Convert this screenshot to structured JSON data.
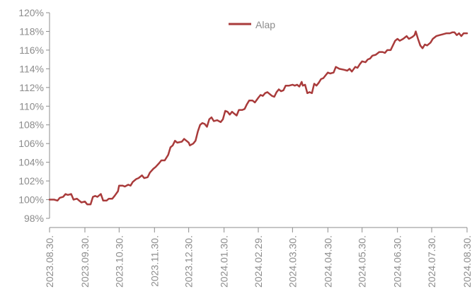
{
  "chart_data": {
    "type": "line",
    "ylim": [
      98,
      120
    ],
    "y_ticks": [
      "98%",
      "100%",
      "102%",
      "104%",
      "106%",
      "108%",
      "110%",
      "112%",
      "114%",
      "116%",
      "118%",
      "120%"
    ],
    "x_ticks": [
      "2023.08.30.",
      "2023.09.30.",
      "2023.10.30.",
      "2023.11.30.",
      "2023.12.30.",
      "2024.01.30.",
      "2024.02.29.",
      "2024.03.30.",
      "2024.04.30.",
      "2024.05.30.",
      "2024.06.30.",
      "2024.07.30.",
      "2024.08.30."
    ],
    "grid": false,
    "legend_position": "top-center",
    "series": [
      {
        "name": "Alap",
        "color": "#a93b3b",
        "points": [
          [
            "2023-08-30",
            100.0
          ],
          [
            "2023-09-03",
            100.0
          ],
          [
            "2023-09-06",
            99.9
          ],
          [
            "2023-09-08",
            100.2
          ],
          [
            "2023-09-11",
            100.3
          ],
          [
            "2023-09-13",
            100.6
          ],
          [
            "2023-09-15",
            100.5
          ],
          [
            "2023-09-18",
            100.6
          ],
          [
            "2023-09-20",
            100.0
          ],
          [
            "2023-09-23",
            100.1
          ],
          [
            "2023-09-25",
            99.9
          ],
          [
            "2023-09-27",
            99.7
          ],
          [
            "2023-09-30",
            99.8
          ],
          [
            "2023-10-02",
            99.5
          ],
          [
            "2023-10-05",
            99.5
          ],
          [
            "2023-10-07",
            100.3
          ],
          [
            "2023-10-09",
            100.4
          ],
          [
            "2023-10-11",
            100.3
          ],
          [
            "2023-10-14",
            100.6
          ],
          [
            "2023-10-16",
            99.9
          ],
          [
            "2023-10-19",
            99.9
          ],
          [
            "2023-10-21",
            100.1
          ],
          [
            "2023-10-24",
            100.1
          ],
          [
            "2023-10-26",
            100.4
          ],
          [
            "2023-10-29",
            100.9
          ],
          [
            "2023-10-30",
            101.5
          ],
          [
            "2023-11-02",
            101.5
          ],
          [
            "2023-11-04",
            101.4
          ],
          [
            "2023-11-07",
            101.6
          ],
          [
            "2023-11-09",
            101.5
          ],
          [
            "2023-11-11",
            101.9
          ],
          [
            "2023-11-14",
            102.2
          ],
          [
            "2023-11-16",
            102.3
          ],
          [
            "2023-11-19",
            102.6
          ],
          [
            "2023-11-21",
            102.3
          ],
          [
            "2023-11-24",
            102.4
          ],
          [
            "2023-11-26",
            102.9
          ],
          [
            "2023-11-29",
            103.3
          ],
          [
            "2023-12-01",
            103.5
          ],
          [
            "2023-12-04",
            103.9
          ],
          [
            "2023-12-06",
            104.2
          ],
          [
            "2023-12-09",
            104.2
          ],
          [
            "2023-12-12",
            104.8
          ],
          [
            "2023-12-14",
            105.6
          ],
          [
            "2023-12-16",
            105.8
          ],
          [
            "2023-12-18",
            106.3
          ],
          [
            "2023-12-20",
            106.1
          ],
          [
            "2023-12-24",
            106.2
          ],
          [
            "2023-12-26",
            106.5
          ],
          [
            "2023-12-28",
            106.3
          ],
          [
            "2023-12-30",
            106.1
          ],
          [
            "2023-12-31",
            105.8
          ],
          [
            "2024-01-03",
            106.0
          ],
          [
            "2024-01-05",
            106.3
          ],
          [
            "2024-01-07",
            107.3
          ],
          [
            "2024-01-09",
            108.0
          ],
          [
            "2024-01-11",
            108.2
          ],
          [
            "2024-01-13",
            108.1
          ],
          [
            "2024-01-15",
            107.8
          ],
          [
            "2024-01-17",
            108.6
          ],
          [
            "2024-01-19",
            108.8
          ],
          [
            "2024-01-21",
            108.4
          ],
          [
            "2024-01-24",
            108.5
          ],
          [
            "2024-01-27",
            108.3
          ],
          [
            "2024-01-29",
            108.6
          ],
          [
            "2024-01-31",
            109.5
          ],
          [
            "2024-02-02",
            109.4
          ],
          [
            "2024-02-04",
            109.1
          ],
          [
            "2024-02-06",
            109.4
          ],
          [
            "2024-02-08",
            109.2
          ],
          [
            "2024-02-10",
            109.0
          ],
          [
            "2024-02-12",
            109.6
          ],
          [
            "2024-02-15",
            109.6
          ],
          [
            "2024-02-17",
            109.7
          ],
          [
            "2024-02-19",
            110.2
          ],
          [
            "2024-02-21",
            110.6
          ],
          [
            "2024-02-24",
            110.6
          ],
          [
            "2024-02-26",
            110.4
          ],
          [
            "2024-02-29",
            110.9
          ],
          [
            "2024-03-02",
            111.2
          ],
          [
            "2024-03-04",
            111.1
          ],
          [
            "2024-03-06",
            111.4
          ],
          [
            "2024-03-08",
            111.5
          ],
          [
            "2024-03-10",
            111.3
          ],
          [
            "2024-03-12",
            111.1
          ],
          [
            "2024-03-14",
            111.0
          ],
          [
            "2024-03-16",
            111.5
          ],
          [
            "2024-03-18",
            111.8
          ],
          [
            "2024-03-20",
            111.6
          ],
          [
            "2024-03-22",
            111.7
          ],
          [
            "2024-03-24",
            112.2
          ],
          [
            "2024-03-27",
            112.2
          ],
          [
            "2024-03-30",
            112.3
          ],
          [
            "2024-04-01",
            112.2
          ],
          [
            "2024-04-03",
            112.3
          ],
          [
            "2024-04-05",
            112.1
          ],
          [
            "2024-04-07",
            112.6
          ],
          [
            "2024-04-08",
            112.2
          ],
          [
            "2024-04-10",
            112.3
          ],
          [
            "2024-04-12",
            111.4
          ],
          [
            "2024-04-14",
            111.5
          ],
          [
            "2024-04-16",
            111.4
          ],
          [
            "2024-04-18",
            112.4
          ],
          [
            "2024-04-20",
            112.2
          ],
          [
            "2024-04-22",
            112.5
          ],
          [
            "2024-04-24",
            112.9
          ],
          [
            "2024-04-26",
            113.0
          ],
          [
            "2024-04-28",
            113.3
          ],
          [
            "2024-04-30",
            113.6
          ],
          [
            "2024-05-02",
            113.5
          ],
          [
            "2024-05-05",
            113.6
          ],
          [
            "2024-05-07",
            114.2
          ],
          [
            "2024-05-10",
            114.0
          ],
          [
            "2024-05-14",
            113.9
          ],
          [
            "2024-05-17",
            113.8
          ],
          [
            "2024-05-19",
            114.0
          ],
          [
            "2024-05-21",
            113.7
          ],
          [
            "2024-05-24",
            114.2
          ],
          [
            "2024-05-26",
            114.1
          ],
          [
            "2024-05-28",
            114.5
          ],
          [
            "2024-05-30",
            114.8
          ],
          [
            "2024-06-02",
            114.7
          ],
          [
            "2024-06-04",
            115.0
          ],
          [
            "2024-06-06",
            115.1
          ],
          [
            "2024-06-08",
            115.4
          ],
          [
            "2024-06-11",
            115.5
          ],
          [
            "2024-06-14",
            115.8
          ],
          [
            "2024-06-17",
            115.8
          ],
          [
            "2024-06-19",
            115.7
          ],
          [
            "2024-06-21",
            116.0
          ],
          [
            "2024-06-24",
            116.0
          ],
          [
            "2024-06-26",
            116.5
          ],
          [
            "2024-06-28",
            117.0
          ],
          [
            "2024-06-30",
            117.2
          ],
          [
            "2024-07-02",
            117.0
          ],
          [
            "2024-07-05",
            117.2
          ],
          [
            "2024-07-08",
            117.5
          ],
          [
            "2024-07-10",
            117.2
          ],
          [
            "2024-07-13",
            117.4
          ],
          [
            "2024-07-15",
            117.6
          ],
          [
            "2024-07-16",
            118.0
          ],
          [
            "2024-07-18",
            117.2
          ],
          [
            "2024-07-20",
            116.5
          ],
          [
            "2024-07-22",
            116.2
          ],
          [
            "2024-07-24",
            116.6
          ],
          [
            "2024-07-26",
            116.5
          ],
          [
            "2024-07-29",
            116.8
          ],
          [
            "2024-07-31",
            117.2
          ],
          [
            "2024-08-03",
            117.5
          ],
          [
            "2024-08-06",
            117.6
          ],
          [
            "2024-08-09",
            117.7
          ],
          [
            "2024-08-12",
            117.8
          ],
          [
            "2024-08-15",
            117.8
          ],
          [
            "2024-08-17",
            117.9
          ],
          [
            "2024-08-19",
            117.9
          ],
          [
            "2024-08-21",
            117.6
          ],
          [
            "2024-08-23",
            117.8
          ],
          [
            "2024-08-25",
            117.5
          ],
          [
            "2024-08-27",
            117.8
          ],
          [
            "2024-08-30",
            117.8
          ]
        ]
      }
    ]
  }
}
